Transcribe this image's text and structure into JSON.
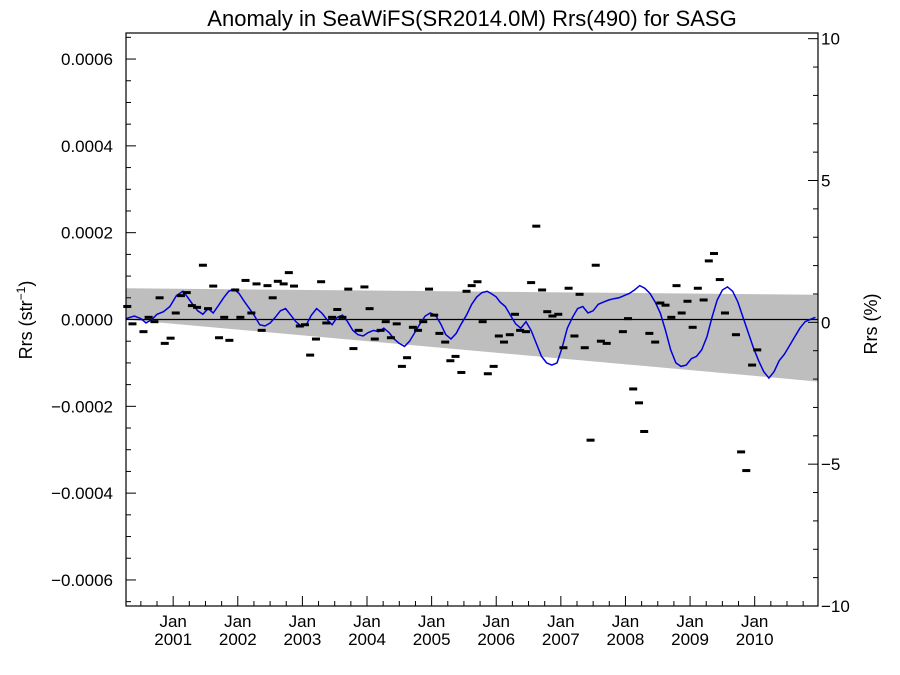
{
  "chart_data": {
    "type": "line",
    "title": "Anomaly in SeaWiFS(SR2014.0M) Rrs(490) for SASG",
    "ylabel_left": "Rrs (str⁻¹)",
    "ylabel_right": "Rrs (%)",
    "ylim_left": [
      -0.00066,
      0.00066
    ],
    "ylim_right": [
      -10.0,
      10.2
    ],
    "xlim": [
      2000.27,
      2010.98
    ],
    "x_tick_labels": [
      {
        "x": 2001.0,
        "top": "Jan",
        "bottom": "2001"
      },
      {
        "x": 2002.0,
        "top": "Jan",
        "bottom": "2002"
      },
      {
        "x": 2003.0,
        "top": "Jan",
        "bottom": "2003"
      },
      {
        "x": 2004.0,
        "top": "Jan",
        "bottom": "2004"
      },
      {
        "x": 2005.0,
        "top": "Jan",
        "bottom": "2005"
      },
      {
        "x": 2006.0,
        "top": "Jan",
        "bottom": "2006"
      },
      {
        "x": 2007.0,
        "top": "Jan",
        "bottom": "2007"
      },
      {
        "x": 2008.0,
        "top": "Jan",
        "bottom": "2008"
      },
      {
        "x": 2009.0,
        "top": "Jan",
        "bottom": "2009"
      },
      {
        "x": 2010.0,
        "top": "Jan",
        "bottom": "2010"
      }
    ],
    "y_tick_labels_left": [
      {
        "v": 0.0006,
        "label": "0.0006"
      },
      {
        "v": 0.0004,
        "label": "0.0004"
      },
      {
        "v": 0.0002,
        "label": "0.0002"
      },
      {
        "v": 0.0,
        "label": "0.0000"
      },
      {
        "v": -0.0002,
        "label": "−0.0002"
      },
      {
        "v": -0.0004,
        "label": "−0.0004"
      },
      {
        "v": -0.0006,
        "label": "−0.0006"
      }
    ],
    "y_tick_labels_right": [
      {
        "v": 10,
        "label": "10"
      },
      {
        "v": 5,
        "label": "5"
      },
      {
        "v": 0,
        "label": "0"
      },
      {
        "v": -5,
        "label": "−5"
      },
      {
        "v": -10,
        "label": "−10"
      }
    ],
    "grid": false,
    "colors": {
      "smooth_line": "#0000dd",
      "uncertainty_band": "#bebebe",
      "points": "#000000",
      "zero_line": "#000000"
    },
    "uncertainty_band": {
      "x": [
        2000.27,
        2010.98
      ],
      "upper": [
        7.2e-05,
        5.7e-05
      ],
      "lower": [
        0.0,
        -0.000143
      ]
    },
    "monthly_anomalies": [
      {
        "x": 2000.29,
        "y": 3e-05
      },
      {
        "x": 2000.37,
        "y": -1e-05
      },
      {
        "x": 2000.54,
        "y": -2.8e-05
      },
      {
        "x": 2000.62,
        "y": 5e-06
      },
      {
        "x": 2000.71,
        "y": -5e-06
      },
      {
        "x": 2000.79,
        "y": 5e-05
      },
      {
        "x": 2000.87,
        "y": -5.5e-05
      },
      {
        "x": 2000.96,
        "y": -4.3e-05
      },
      {
        "x": 2001.04,
        "y": 1.5e-05
      },
      {
        "x": 2001.12,
        "y": 5.5e-05
      },
      {
        "x": 2001.21,
        "y": 6.2e-05
      },
      {
        "x": 2001.29,
        "y": 3.2e-05
      },
      {
        "x": 2001.37,
        "y": 2.8e-05
      },
      {
        "x": 2001.46,
        "y": 0.000125
      },
      {
        "x": 2001.54,
        "y": 2.5e-05
      },
      {
        "x": 2001.62,
        "y": 7.7e-05
      },
      {
        "x": 2001.71,
        "y": -4.2e-05
      },
      {
        "x": 2001.79,
        "y": 5e-06
      },
      {
        "x": 2001.87,
        "y": -4.8e-05
      },
      {
        "x": 2001.96,
        "y": 6.8e-05
      },
      {
        "x": 2002.04,
        "y": 5e-06
      },
      {
        "x": 2002.12,
        "y": 9e-05
      },
      {
        "x": 2002.21,
        "y": 1.5e-05
      },
      {
        "x": 2002.29,
        "y": 8.2e-05
      },
      {
        "x": 2002.37,
        "y": -2.5e-05
      },
      {
        "x": 2002.46,
        "y": 7.8e-05
      },
      {
        "x": 2002.54,
        "y": 5e-05
      },
      {
        "x": 2002.62,
        "y": 8.8e-05
      },
      {
        "x": 2002.71,
        "y": 8.2e-05
      },
      {
        "x": 2002.79,
        "y": 0.000108
      },
      {
        "x": 2002.87,
        "y": 7.7e-05
      },
      {
        "x": 2002.96,
        "y": -1.5e-05
      },
      {
        "x": 2003.04,
        "y": -1.2e-05
      },
      {
        "x": 2003.12,
        "y": -8.2e-05
      },
      {
        "x": 2003.21,
        "y": -4.5e-05
      },
      {
        "x": 2003.29,
        "y": 8.7e-05
      },
      {
        "x": 2003.37,
        "y": -8e-06
      },
      {
        "x": 2003.46,
        "y": 5e-06
      },
      {
        "x": 2003.54,
        "y": 2.3e-05
      },
      {
        "x": 2003.62,
        "y": 5e-06
      },
      {
        "x": 2003.71,
        "y": 7e-05
      },
      {
        "x": 2003.79,
        "y": -6.7e-05
      },
      {
        "x": 2003.87,
        "y": -2.5e-05
      },
      {
        "x": 2003.96,
        "y": 7.5e-05
      },
      {
        "x": 2004.04,
        "y": 2.5e-05
      },
      {
        "x": 2004.12,
        "y": -4.5e-05
      },
      {
        "x": 2004.21,
        "y": -2.5e-05
      },
      {
        "x": 2004.29,
        "y": -5e-06
      },
      {
        "x": 2004.37,
        "y": -4.2e-05
      },
      {
        "x": 2004.46,
        "y": -1e-05
      },
      {
        "x": 2004.54,
        "y": -0.000108
      },
      {
        "x": 2004.62,
        "y": -8.8e-05
      },
      {
        "x": 2004.71,
        "y": -1.8e-05
      },
      {
        "x": 2004.79,
        "y": -2.5e-05
      },
      {
        "x": 2004.87,
        "y": -5e-06
      },
      {
        "x": 2004.96,
        "y": 7e-05
      },
      {
        "x": 2005.04,
        "y": 1e-05
      },
      {
        "x": 2005.12,
        "y": -3.2e-05
      },
      {
        "x": 2005.21,
        "y": -5.2e-05
      },
      {
        "x": 2005.29,
        "y": -9.5e-05
      },
      {
        "x": 2005.37,
        "y": -8.5e-05
      },
      {
        "x": 2005.46,
        "y": -0.000122
      },
      {
        "x": 2005.54,
        "y": 6.5e-05
      },
      {
        "x": 2005.62,
        "y": 7.8e-05
      },
      {
        "x": 2005.71,
        "y": 8.7e-05
      },
      {
        "x": 2005.79,
        "y": -5e-06
      },
      {
        "x": 2005.87,
        "y": -0.000125
      },
      {
        "x": 2005.96,
        "y": -0.000108
      },
      {
        "x": 2006.04,
        "y": -3.8e-05
      },
      {
        "x": 2006.12,
        "y": -5.2e-05
      },
      {
        "x": 2006.21,
        "y": -3.5e-05
      },
      {
        "x": 2006.29,
        "y": 1.2e-05
      },
      {
        "x": 2006.37,
        "y": -2.5e-05
      },
      {
        "x": 2006.46,
        "y": -2.8e-05
      },
      {
        "x": 2006.54,
        "y": 8.5e-05
      },
      {
        "x": 2006.62,
        "y": 0.000215
      },
      {
        "x": 2006.71,
        "y": 6.8e-05
      },
      {
        "x": 2006.79,
        "y": 1.8e-05
      },
      {
        "x": 2006.87,
        "y": 8e-06
      },
      {
        "x": 2006.96,
        "y": 1.2e-05
      },
      {
        "x": 2007.04,
        "y": -6.5e-05
      },
      {
        "x": 2007.12,
        "y": 7.2e-05
      },
      {
        "x": 2007.21,
        "y": -3.8e-05
      },
      {
        "x": 2007.29,
        "y": 5.8e-05
      },
      {
        "x": 2007.37,
        "y": -6.5e-05
      },
      {
        "x": 2007.46,
        "y": -0.000278
      },
      {
        "x": 2007.54,
        "y": 0.000125
      },
      {
        "x": 2007.62,
        "y": -5e-05
      },
      {
        "x": 2007.71,
        "y": -5.5e-05
      },
      {
        "x": 2007.96,
        "y": -2.8e-05
      },
      {
        "x": 2008.04,
        "y": 2e-06
      },
      {
        "x": 2008.12,
        "y": -0.00016
      },
      {
        "x": 2008.21,
        "y": -0.000192
      },
      {
        "x": 2008.29,
        "y": -0.000258
      },
      {
        "x": 2008.37,
        "y": -3.2e-05
      },
      {
        "x": 2008.46,
        "y": -5.2e-05
      },
      {
        "x": 2008.54,
        "y": 3.8e-05
      },
      {
        "x": 2008.62,
        "y": 3.3e-05
      },
      {
        "x": 2008.71,
        "y": 5e-06
      },
      {
        "x": 2008.79,
        "y": 7.8e-05
      },
      {
        "x": 2008.87,
        "y": 1.5e-05
      },
      {
        "x": 2008.96,
        "y": 4.2e-05
      },
      {
        "x": 2009.04,
        "y": -1.8e-05
      },
      {
        "x": 2009.12,
        "y": 7.2e-05
      },
      {
        "x": 2009.21,
        "y": 4.5e-05
      },
      {
        "x": 2009.29,
        "y": 0.000135
      },
      {
        "x": 2009.37,
        "y": 0.000152
      },
      {
        "x": 2009.46,
        "y": 9.2e-05
      },
      {
        "x": 2009.54,
        "y": 1.5e-05
      },
      {
        "x": 2009.71,
        "y": -3.5e-05
      },
      {
        "x": 2009.79,
        "y": -0.000305
      },
      {
        "x": 2009.87,
        "y": -0.000348
      },
      {
        "x": 2009.96,
        "y": -0.000105
      },
      {
        "x": 2010.04,
        "y": -7e-05
      }
    ],
    "smoothed_series": [
      {
        "x": 2000.27,
        "y": 2e-06
      },
      {
        "x": 2000.4,
        "y": 8e-06
      },
      {
        "x": 2000.5,
        "y": 2e-06
      },
      {
        "x": 2000.58,
        "y": -8e-06
      },
      {
        "x": 2000.67,
        "y": 0.0
      },
      {
        "x": 2000.75,
        "y": 1.2e-05
      },
      {
        "x": 2000.85,
        "y": 1.8e-05
      },
      {
        "x": 2000.95,
        "y": 3e-05
      },
      {
        "x": 2001.05,
        "y": 5.5e-05
      },
      {
        "x": 2001.15,
        "y": 6.5e-05
      },
      {
        "x": 2001.22,
        "y": 5.2e-05
      },
      {
        "x": 2001.3,
        "y": 3.5e-05
      },
      {
        "x": 2001.38,
        "y": 2e-05
      },
      {
        "x": 2001.46,
        "y": 1.2e-05
      },
      {
        "x": 2001.54,
        "y": 2.5e-05
      },
      {
        "x": 2001.62,
        "y": 1.5e-05
      },
      {
        "x": 2001.7,
        "y": 3.2e-05
      },
      {
        "x": 2001.78,
        "y": 5e-05
      },
      {
        "x": 2001.86,
        "y": 6.5e-05
      },
      {
        "x": 2001.94,
        "y": 7e-05
      },
      {
        "x": 2002.02,
        "y": 6e-05
      },
      {
        "x": 2002.1,
        "y": 4.2e-05
      },
      {
        "x": 2002.18,
        "y": 2.5e-05
      },
      {
        "x": 2002.26,
        "y": 8e-06
      },
      {
        "x": 2002.34,
        "y": -1.2e-05
      },
      {
        "x": 2002.42,
        "y": -1.5e-05
      },
      {
        "x": 2002.5,
        "y": -8e-06
      },
      {
        "x": 2002.58,
        "y": 5e-06
      },
      {
        "x": 2002.66,
        "y": 2e-05
      },
      {
        "x": 2002.74,
        "y": 2.5e-05
      },
      {
        "x": 2002.82,
        "y": 1e-05
      },
      {
        "x": 2002.9,
        "y": -5e-06
      },
      {
        "x": 2002.98,
        "y": -1.5e-05
      },
      {
        "x": 2003.06,
        "y": -1.2e-05
      },
      {
        "x": 2003.14,
        "y": 1e-05
      },
      {
        "x": 2003.22,
        "y": 2.5e-05
      },
      {
        "x": 2003.3,
        "y": 1.5e-05
      },
      {
        "x": 2003.38,
        "y": 0.0
      },
      {
        "x": 2003.46,
        "y": -1.2e-05
      },
      {
        "x": 2003.54,
        "y": 5e-06
      },
      {
        "x": 2003.62,
        "y": 1e-05
      },
      {
        "x": 2003.7,
        "y": -5e-06
      },
      {
        "x": 2003.78,
        "y": -2.5e-05
      },
      {
        "x": 2003.86,
        "y": -3.5e-05
      },
      {
        "x": 2003.94,
        "y": -3.8e-05
      },
      {
        "x": 2004.02,
        "y": -3e-05
      },
      {
        "x": 2004.1,
        "y": -2.5e-05
      },
      {
        "x": 2004.18,
        "y": -2.8e-05
      },
      {
        "x": 2004.26,
        "y": -2e-05
      },
      {
        "x": 2004.34,
        "y": -3e-05
      },
      {
        "x": 2004.42,
        "y": -4.5e-05
      },
      {
        "x": 2004.5,
        "y": -5.5e-05
      },
      {
        "x": 2004.58,
        "y": -6.2e-05
      },
      {
        "x": 2004.66,
        "y": -5e-05
      },
      {
        "x": 2004.74,
        "y": -3e-05
      },
      {
        "x": 2004.82,
        "y": -1e-05
      },
      {
        "x": 2004.9,
        "y": 8e-06
      },
      {
        "x": 2004.98,
        "y": 1.5e-05
      },
      {
        "x": 2005.06,
        "y": 1e-05
      },
      {
        "x": 2005.14,
        "y": -1e-05
      },
      {
        "x": 2005.22,
        "y": -3.5e-05
      },
      {
        "x": 2005.3,
        "y": -4.5e-05
      },
      {
        "x": 2005.38,
        "y": -3.2e-05
      },
      {
        "x": 2005.46,
        "y": -1e-05
      },
      {
        "x": 2005.54,
        "y": 1e-05
      },
      {
        "x": 2005.62,
        "y": 3.5e-05
      },
      {
        "x": 2005.7,
        "y": 5.2e-05
      },
      {
        "x": 2005.78,
        "y": 6.2e-05
      },
      {
        "x": 2005.86,
        "y": 6.5e-05
      },
      {
        "x": 2005.92,
        "y": 6e-05
      },
      {
        "x": 2006.0,
        "y": 5.2e-05
      },
      {
        "x": 2006.06,
        "y": 4e-05
      },
      {
        "x": 2006.14,
        "y": 3e-05
      },
      {
        "x": 2006.22,
        "y": 1e-05
      },
      {
        "x": 2006.3,
        "y": -1e-05
      },
      {
        "x": 2006.38,
        "y": -2e-05
      },
      {
        "x": 2006.46,
        "y": -5e-06
      },
      {
        "x": 2006.54,
        "y": -2.5e-05
      },
      {
        "x": 2006.62,
        "y": -5.5e-05
      },
      {
        "x": 2006.7,
        "y": -8.5e-05
      },
      {
        "x": 2006.78,
        "y": -0.0001
      },
      {
        "x": 2006.86,
        "y": -0.000105
      },
      {
        "x": 2006.94,
        "y": -0.0001
      },
      {
        "x": 2007.02,
        "y": -6.5e-05
      },
      {
        "x": 2007.1,
        "y": -2e-05
      },
      {
        "x": 2007.18,
        "y": 5e-06
      },
      {
        "x": 2007.26,
        "y": 2.5e-05
      },
      {
        "x": 2007.34,
        "y": 3e-05
      },
      {
        "x": 2007.42,
        "y": 1.5e-05
      },
      {
        "x": 2007.5,
        "y": 2e-05
      },
      {
        "x": 2007.58,
        "y": 3.5e-05
      },
      {
        "x": 2007.66,
        "y": 4e-05
      },
      {
        "x": 2007.74,
        "y": 4.5e-05
      },
      {
        "x": 2007.82,
        "y": 4.8e-05
      },
      {
        "x": 2007.9,
        "y": 5e-05
      },
      {
        "x": 2007.98,
        "y": 5.5e-05
      },
      {
        "x": 2008.06,
        "y": 6e-05
      },
      {
        "x": 2008.14,
        "y": 6.8e-05
      },
      {
        "x": 2008.22,
        "y": 7.8e-05
      },
      {
        "x": 2008.3,
        "y": 7.2e-05
      },
      {
        "x": 2008.38,
        "y": 6e-05
      },
      {
        "x": 2008.46,
        "y": 4e-05
      },
      {
        "x": 2008.54,
        "y": 1.5e-05
      },
      {
        "x": 2008.62,
        "y": -2.5e-05
      },
      {
        "x": 2008.7,
        "y": -7e-05
      },
      {
        "x": 2008.78,
        "y": -0.0001
      },
      {
        "x": 2008.86,
        "y": -0.000108
      },
      {
        "x": 2008.94,
        "y": -0.000105
      },
      {
        "x": 2009.02,
        "y": -9e-05
      },
      {
        "x": 2009.1,
        "y": -8.5e-05
      },
      {
        "x": 2009.18,
        "y": -7e-05
      },
      {
        "x": 2009.26,
        "y": -4e-05
      },
      {
        "x": 2009.34,
        "y": 5e-06
      },
      {
        "x": 2009.42,
        "y": 4.5e-05
      },
      {
        "x": 2009.5,
        "y": 6.8e-05
      },
      {
        "x": 2009.58,
        "y": 7.5e-05
      },
      {
        "x": 2009.66,
        "y": 6.5e-05
      },
      {
        "x": 2009.74,
        "y": 4e-05
      },
      {
        "x": 2009.82,
        "y": 5e-06
      },
      {
        "x": 2009.9,
        "y": -3e-05
      },
      {
        "x": 2009.98,
        "y": -6.5e-05
      },
      {
        "x": 2010.06,
        "y": -9.5e-05
      },
      {
        "x": 2010.14,
        "y": -0.00012
      },
      {
        "x": 2010.22,
        "y": -0.000135
      },
      {
        "x": 2010.3,
        "y": -0.00012
      },
      {
        "x": 2010.38,
        "y": -9.5e-05
      },
      {
        "x": 2010.46,
        "y": -8e-05
      },
      {
        "x": 2010.54,
        "y": -6e-05
      },
      {
        "x": 2010.62,
        "y": -4e-05
      },
      {
        "x": 2010.7,
        "y": -2e-05
      },
      {
        "x": 2010.78,
        "y": -5e-06
      },
      {
        "x": 2010.86,
        "y": 0.0
      },
      {
        "x": 2010.94,
        "y": 5e-06
      }
    ]
  }
}
